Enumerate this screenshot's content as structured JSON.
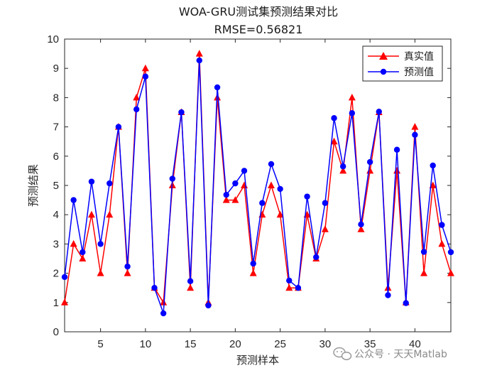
{
  "chart_data": {
    "type": "line",
    "title": "WOA-GRU测试集预测结果对比",
    "subtitle": "RMSE=0.56821",
    "xlabel": "预测样本",
    "ylabel": "预测结果",
    "xlim": [
      1,
      44
    ],
    "ylim": [
      0,
      10
    ],
    "xticks": [
      5,
      10,
      15,
      20,
      25,
      30,
      35,
      40
    ],
    "yticks": [
      0,
      1,
      2,
      3,
      4,
      5,
      6,
      7,
      8,
      9,
      10
    ],
    "grid": false,
    "legend_position": "top-right",
    "x": [
      1,
      2,
      3,
      4,
      5,
      6,
      7,
      8,
      9,
      10,
      11,
      12,
      13,
      14,
      15,
      16,
      17,
      18,
      19,
      20,
      21,
      22,
      23,
      24,
      25,
      26,
      27,
      28,
      29,
      30,
      31,
      32,
      33,
      34,
      35,
      36,
      37,
      38,
      39,
      40,
      41,
      42,
      43,
      44
    ],
    "series": [
      {
        "name": "真实值",
        "color": "#ff0000",
        "marker": "triangle",
        "values": [
          1,
          3,
          2.5,
          4,
          2,
          4,
          7,
          2,
          8,
          9,
          1.5,
          1,
          5,
          7.5,
          1.5,
          9.5,
          1,
          8,
          4.5,
          4.5,
          5,
          2,
          4,
          5,
          4,
          1.5,
          1.5,
          4,
          2.5,
          3.5,
          6.5,
          5.5,
          8,
          3.5,
          5.5,
          7.5,
          1.5,
          5.5,
          1,
          7,
          2,
          5,
          3,
          2
        ]
      },
      {
        "name": "预测值",
        "color": "#0000ff",
        "marker": "circle",
        "values": [
          1.87,
          4.5,
          2.72,
          5.13,
          3,
          5.07,
          7,
          2.23,
          7.6,
          8.72,
          1.5,
          0.63,
          5.23,
          7.5,
          1.73,
          9.27,
          0.9,
          8.35,
          4.68,
          5.07,
          5.5,
          2.33,
          4.4,
          5.73,
          4.88,
          1.75,
          1.5,
          4.62,
          2.55,
          4.4,
          7.3,
          5.65,
          7.47,
          3.67,
          5.8,
          7.52,
          1.25,
          6.22,
          0.98,
          6.73,
          2.73,
          5.68,
          3.65,
          2.72
        ]
      }
    ]
  },
  "watermark": {
    "text": "公众号 · 天天Matlab",
    "icon": "wechat-icon"
  }
}
